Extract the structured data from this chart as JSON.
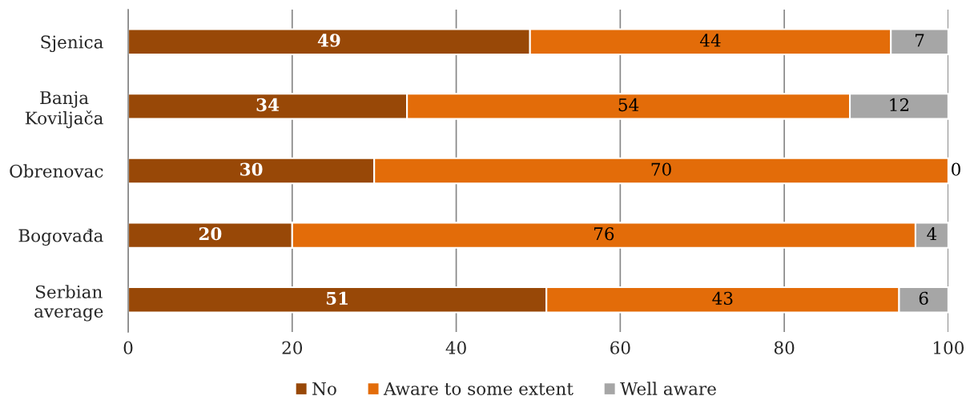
{
  "chart_data": {
    "type": "bar",
    "orientation": "horizontal",
    "stacked": true,
    "categories": [
      "Sjenica",
      "Banja Koviljača",
      "Obrenovac",
      "Bogovađa",
      "Serbian average"
    ],
    "series": [
      {
        "name": "No",
        "color": "#984807",
        "values": [
          49,
          34,
          30,
          20,
          51
        ]
      },
      {
        "name": "Aware to some extent",
        "color": "#e36c09",
        "values": [
          44,
          54,
          70,
          76,
          43
        ]
      },
      {
        "name": "Well aware",
        "color": "#a6a6a6",
        "values": [
          7,
          12,
          0,
          4,
          6
        ]
      }
    ],
    "xlim": [
      0,
      100
    ],
    "xticks": [
      0,
      20,
      40,
      60,
      80,
      100
    ],
    "grid": "x",
    "legend": "bottom",
    "data_labels": true
  }
}
